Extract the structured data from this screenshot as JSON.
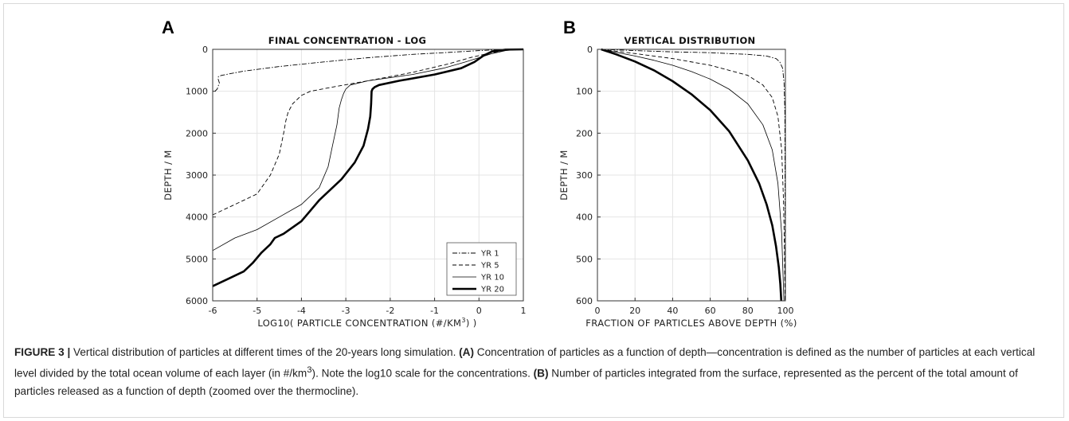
{
  "chart_data": [
    {
      "type": "line",
      "panel": "A",
      "title": "FINAL CONCENTRATION - LOG",
      "xlabel_main": "LOG10( PARTICLE CONCENTRATION (#/KM",
      "xlabel_sup": "3",
      "xlabel_end": ") )",
      "ylabel": "DEPTH / M",
      "xlim": [
        -6,
        1
      ],
      "ylim": [
        6000,
        0
      ],
      "xticks": [
        "-6",
        "-5",
        "-4",
        "-3",
        "-2",
        "-1",
        "0",
        "1"
      ],
      "xtick_values": [
        -6,
        -5,
        -4,
        -3,
        -2,
        -1,
        0,
        1
      ],
      "yticks": [
        "0",
        "1000",
        "2000",
        "3000",
        "4000",
        "5000",
        "6000"
      ],
      "ytick_values": [
        0,
        1000,
        2000,
        3000,
        4000,
        5000,
        6000
      ],
      "grid": true,
      "legend_position": "bottom-right",
      "series": [
        {
          "name": "YR 1",
          "style": "dashdot",
          "width": 0.9,
          "x": [
            -5.95,
            -5.9,
            -5.85,
            -5.88,
            -5.87,
            -5.8,
            -5.3,
            -4.5,
            -3.5,
            -2.5,
            -1.5,
            -0.8,
            -0.3,
            0.0,
            0.3,
            0.6,
            1.0
          ],
          "y": [
            1000,
            950,
            800,
            700,
            650,
            620,
            520,
            410,
            300,
            200,
            120,
            80,
            50,
            30,
            15,
            5,
            0
          ]
        },
        {
          "name": "YR 5",
          "style": "dashed",
          "width": 0.9,
          "x": [
            -6.0,
            -5.5,
            -5.0,
            -4.7,
            -4.5,
            -4.4,
            -4.35,
            -4.3,
            -4.2,
            -4.0,
            -3.8,
            -3.3,
            -2.5,
            -1.5,
            -0.7,
            -0.2,
            0.2,
            0.5,
            0.7,
            1.0
          ],
          "y": [
            3950,
            3700,
            3450,
            3000,
            2500,
            2000,
            1700,
            1500,
            1300,
            1100,
            1000,
            900,
            750,
            550,
            350,
            200,
            100,
            40,
            10,
            0
          ]
        },
        {
          "name": "YR 10",
          "style": "solid",
          "width": 0.8,
          "x": [
            -6.0,
            -5.5,
            -5.0,
            -4.5,
            -4.0,
            -3.6,
            -3.4,
            -3.3,
            -3.2,
            -3.15,
            -3.1,
            -3.05,
            -3.0,
            -2.9,
            -2.5,
            -1.5,
            -0.8,
            -0.3,
            0.0,
            0.3,
            0.6,
            0.8,
            1.0
          ],
          "y": [
            4800,
            4500,
            4300,
            4000,
            3700,
            3300,
            2800,
            2300,
            1800,
            1400,
            1200,
            1050,
            950,
            850,
            750,
            600,
            450,
            300,
            200,
            100,
            30,
            10,
            0
          ]
        },
        {
          "name": "YR 20",
          "style": "solid",
          "width": 2.6,
          "x": [
            -6.0,
            -5.7,
            -5.3,
            -5.1,
            -4.9,
            -4.7,
            -4.6,
            -4.4,
            -4.0,
            -3.6,
            -3.1,
            -2.8,
            -2.6,
            -2.5,
            -2.45,
            -2.43,
            -2.42,
            -2.4,
            -2.35,
            -2.25,
            -1.8,
            -1.0,
            -0.4,
            -0.1,
            0.1,
            0.3,
            0.6,
            1.0
          ],
          "y": [
            5650,
            5500,
            5300,
            5100,
            4850,
            4650,
            4500,
            4400,
            4100,
            3600,
            3100,
            2700,
            2300,
            1900,
            1600,
            1300,
            1000,
            950,
            900,
            850,
            750,
            600,
            450,
            300,
            150,
            50,
            5,
            0
          ]
        }
      ]
    },
    {
      "type": "line",
      "panel": "B",
      "title": "VERTICAL DISTRIBUTION",
      "xlabel": "FRACTION OF PARTICLES ABOVE DEPTH (%)",
      "ylabel": "DEPTH / M",
      "xlim": [
        0,
        100
      ],
      "ylim": [
        600,
        0
      ],
      "xticks": [
        "0",
        "20",
        "40",
        "60",
        "80",
        "100"
      ],
      "xtick_values": [
        0,
        20,
        40,
        60,
        80,
        100
      ],
      "yticks": [
        "0",
        "100",
        "200",
        "300",
        "400",
        "500",
        "600"
      ],
      "ytick_values": [
        0,
        100,
        200,
        300,
        400,
        500,
        600
      ],
      "grid": true,
      "series": [
        {
          "name": "YR 1",
          "style": "dashdot",
          "width": 0.9,
          "x": [
            2,
            20,
            40,
            60,
            80,
            90,
            95,
            97,
            98.5,
            99.3,
            99.7,
            99.9
          ],
          "y": [
            0,
            3,
            6,
            8,
            12,
            16,
            22,
            30,
            45,
            80,
            150,
            600
          ]
        },
        {
          "name": "YR 5",
          "style": "dashed",
          "width": 0.9,
          "x": [
            2,
            20,
            40,
            60,
            80,
            88,
            93,
            96,
            98,
            99,
            99.5,
            99.8
          ],
          "y": [
            0,
            10,
            22,
            38,
            62,
            85,
            115,
            160,
            240,
            360,
            480,
            600
          ]
        },
        {
          "name": "YR 10",
          "style": "solid",
          "width": 0.8,
          "x": [
            2,
            10,
            20,
            30,
            40,
            50,
            60,
            70,
            80,
            88,
            93,
            96,
            98,
            99.2
          ],
          "y": [
            0,
            7,
            16,
            26,
            38,
            53,
            71,
            95,
            130,
            180,
            240,
            320,
            440,
            600
          ]
        },
        {
          "name": "YR 20",
          "style": "solid",
          "width": 2.6,
          "x": [
            2,
            10,
            20,
            30,
            40,
            50,
            60,
            70,
            80,
            86,
            90,
            93,
            95,
            96.5,
            97.3,
            97.8
          ],
          "y": [
            0,
            12,
            29,
            50,
            76,
            107,
            145,
            195,
            265,
            320,
            370,
            420,
            470,
            520,
            560,
            600
          ]
        }
      ]
    }
  ],
  "caption": {
    "label": "FIGURE 3 |",
    "t1": " Vertical distribution of particles at different times of the 20-years long simulation. ",
    "a_label": "(A)",
    "t2": " Concentration of particles as a function of depth—concentration is defined as the number of particles at each vertical level divided by the total ocean volume of each layer (in #/km",
    "sup": "3",
    "t3": "). Note the log10 scale for the concentrations. ",
    "b_label": "(B)",
    "t4": " Number of particles integrated from the surface, represented as the percent of the total amount of particles released as a function of depth (zoomed over the thermocline)."
  }
}
